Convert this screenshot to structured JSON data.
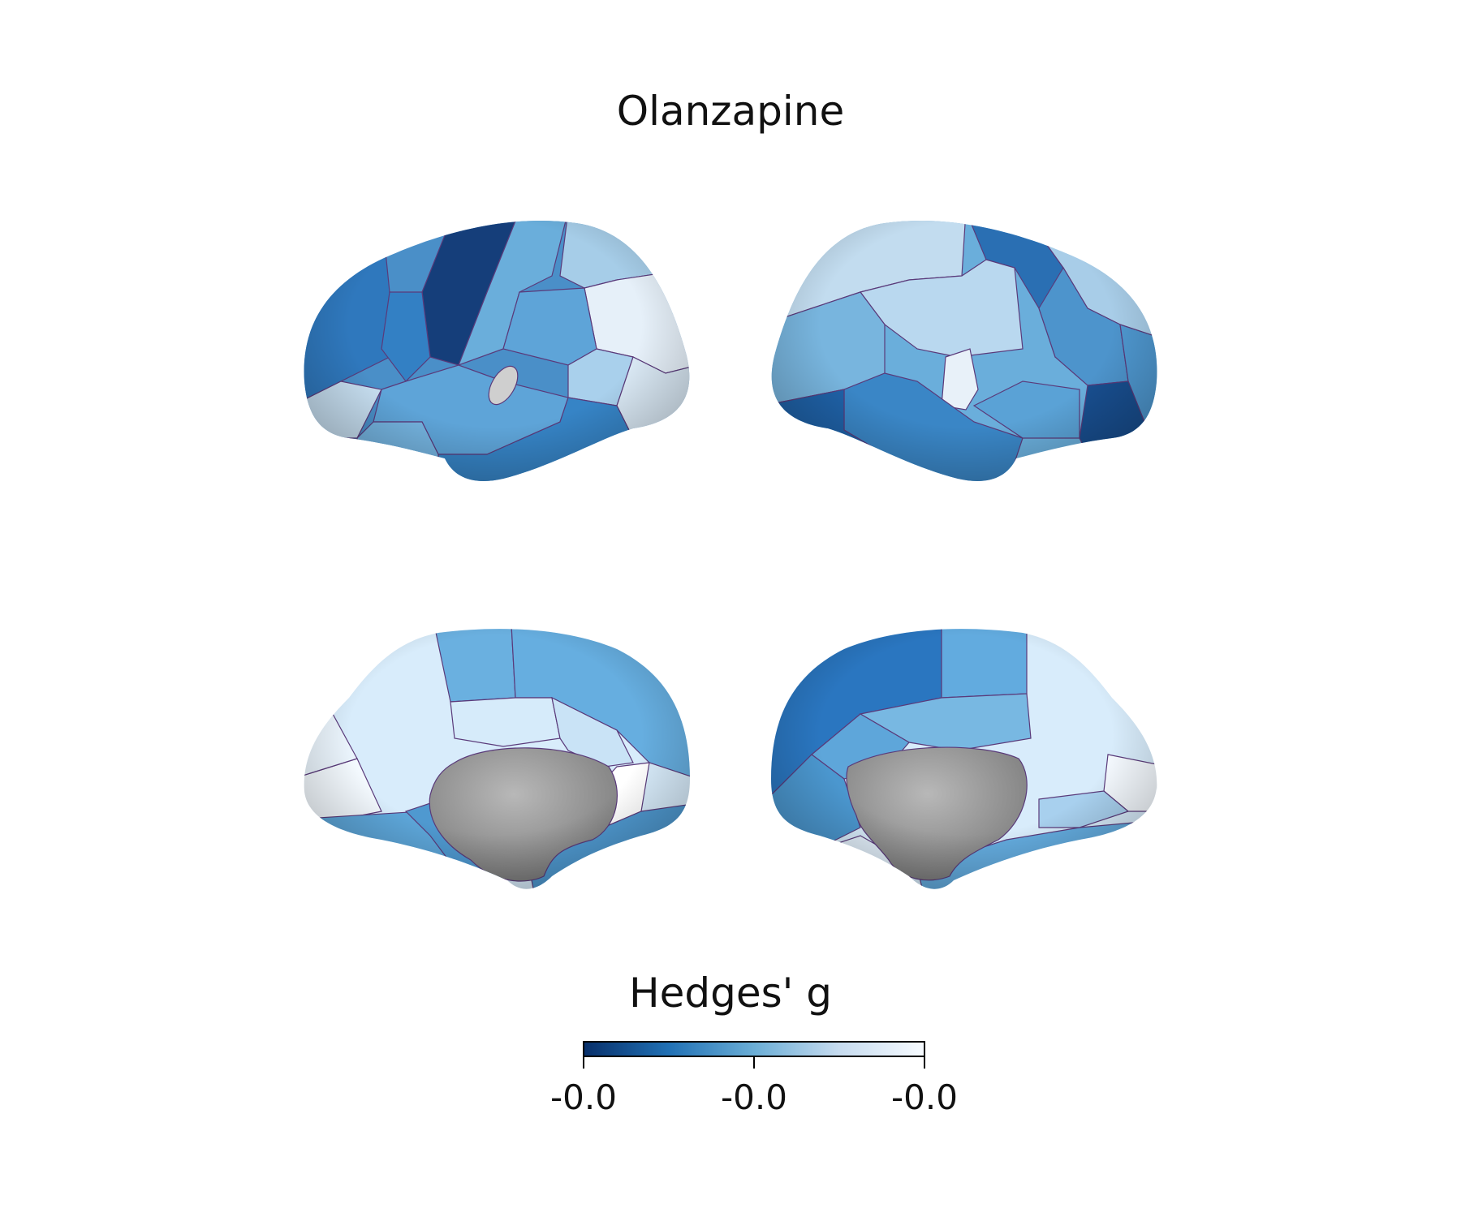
{
  "figure": {
    "title": "Olanzapine"
  },
  "colorbar": {
    "label": "Hedges' g",
    "cmap_stops": [
      "#08306b",
      "#2171b5",
      "#6baed6",
      "#c6dbef",
      "#f7fbff"
    ],
    "ticks": [
      "-0.0",
      "-0.0",
      "-0.0"
    ]
  },
  "colors": {
    "medial_wall": "#a9a9a9",
    "parcel_border": "#5a3a7a"
  },
  "views": [
    {
      "name": "left-lateral"
    },
    {
      "name": "right-lateral"
    },
    {
      "name": "left-medial"
    },
    {
      "name": "right-medial"
    }
  ]
}
